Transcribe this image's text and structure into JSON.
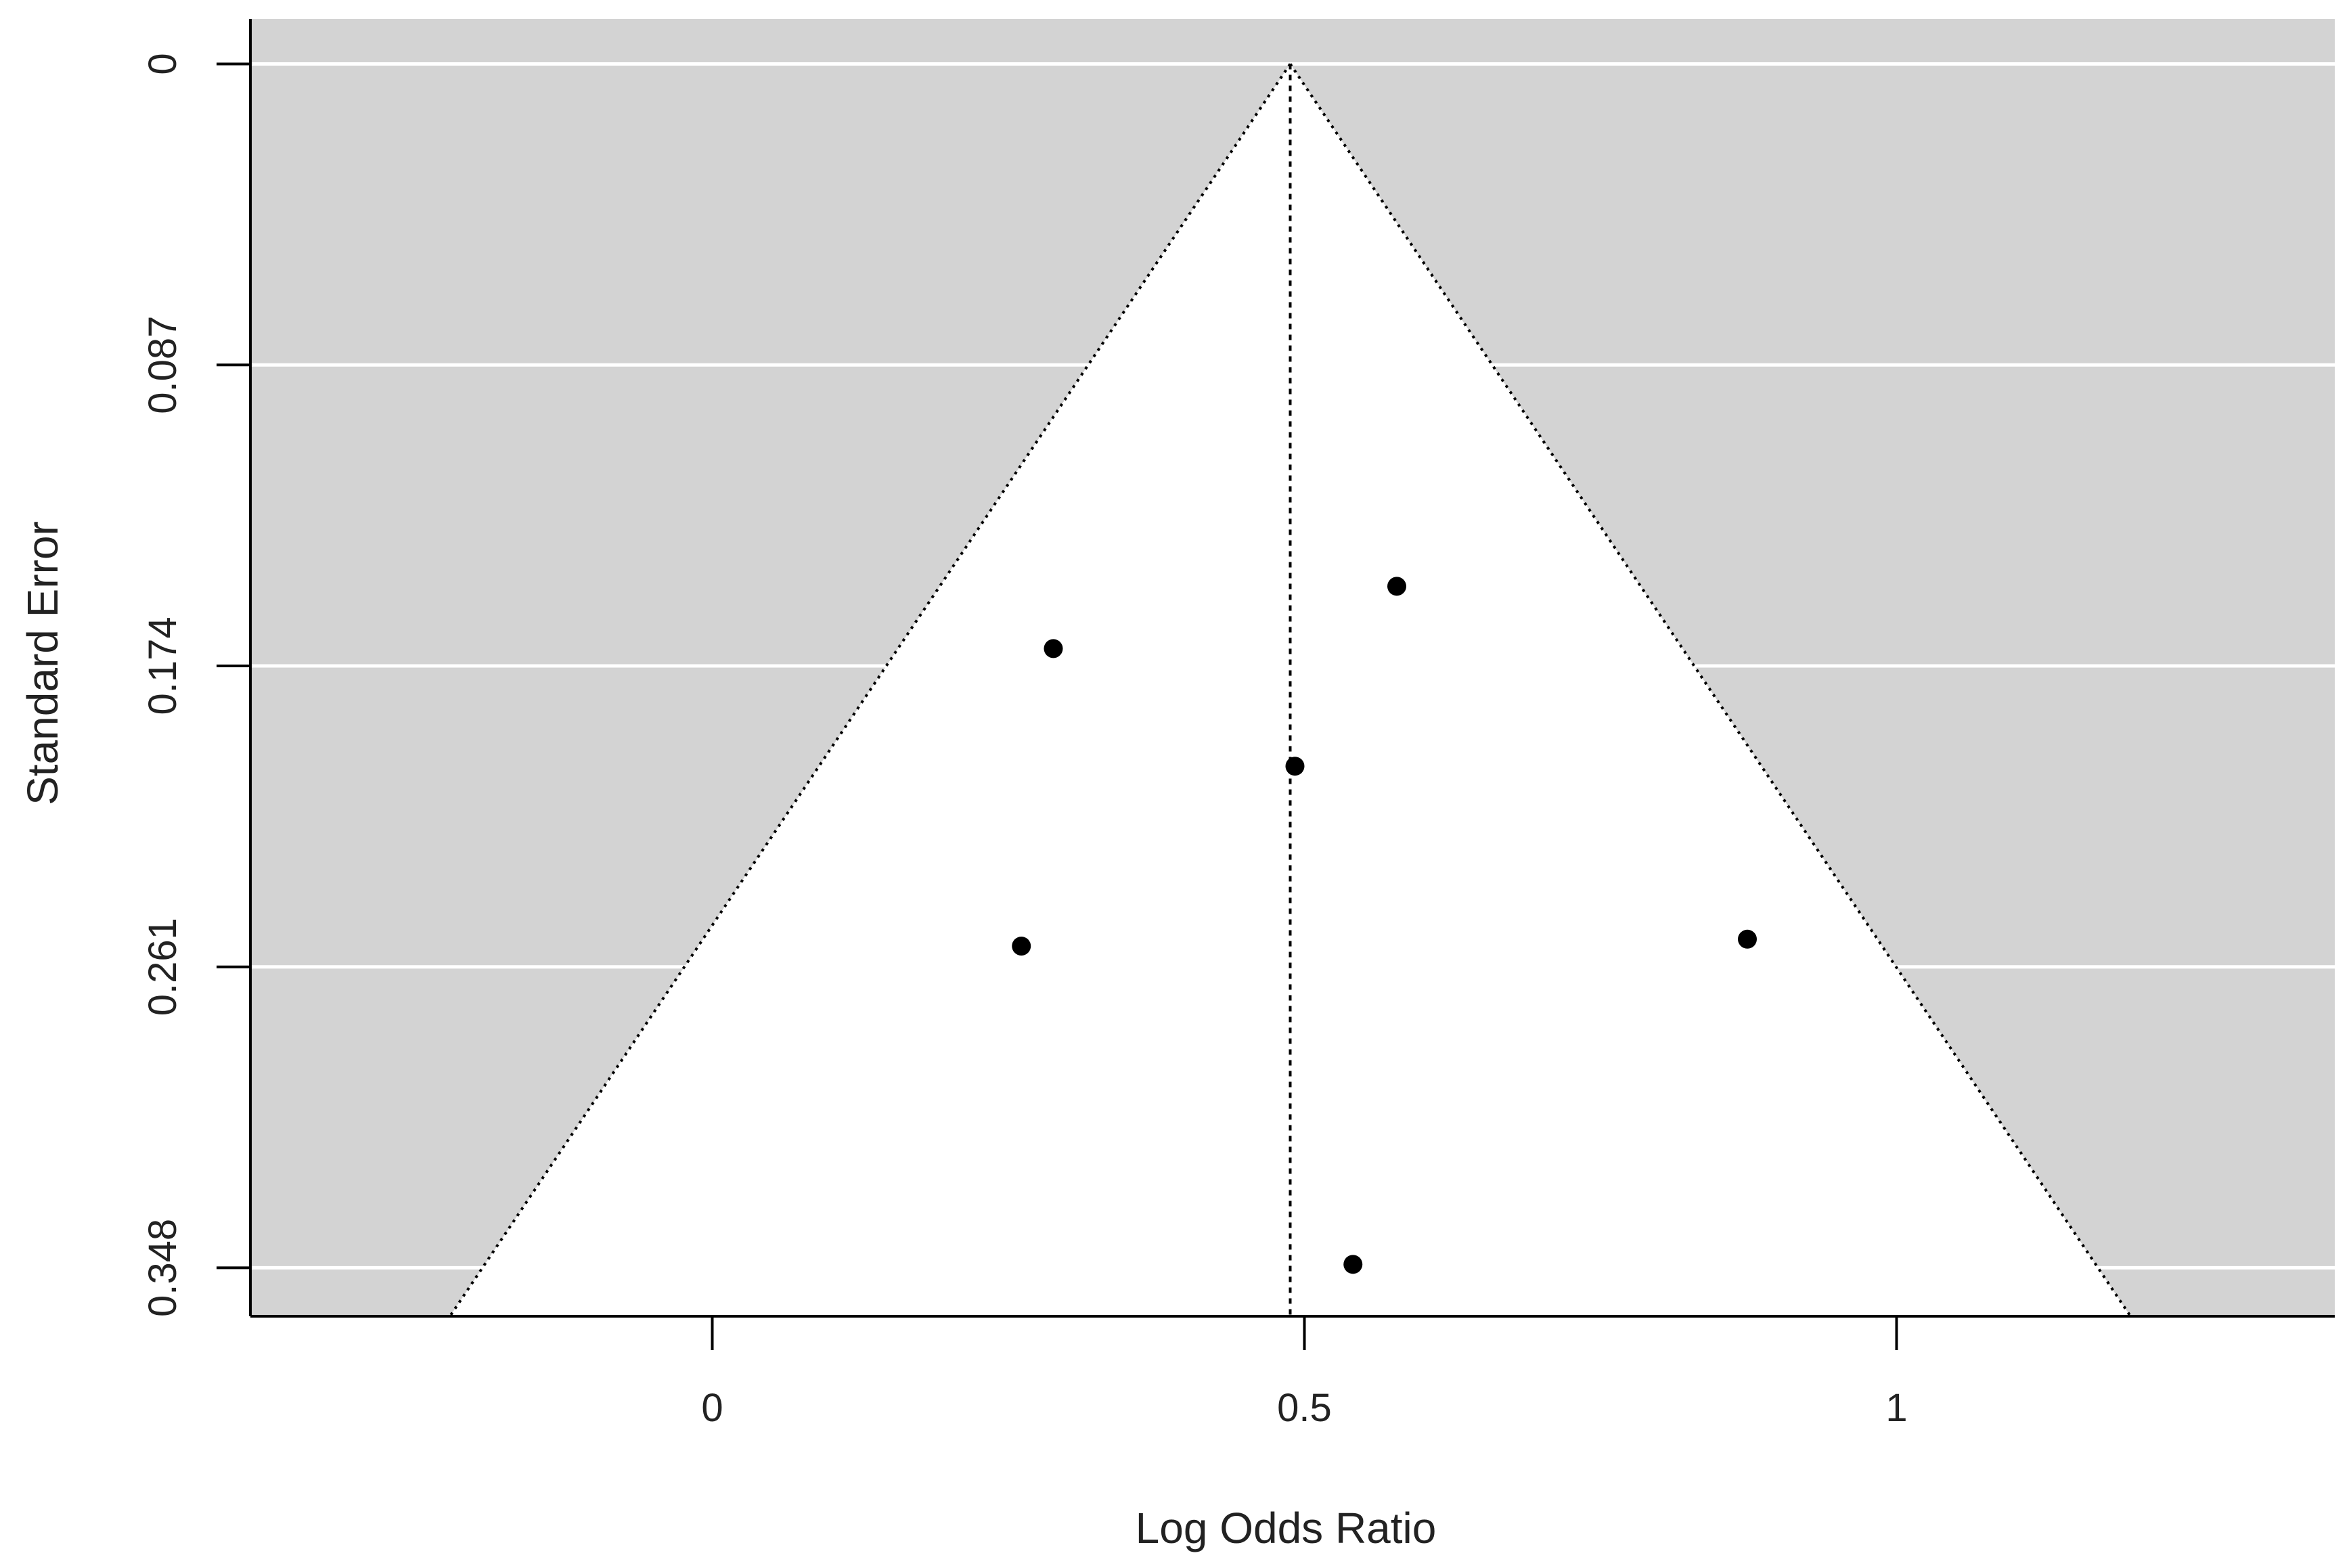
{
  "chart_data": {
    "type": "scatter",
    "subtype": "funnel plot",
    "title": "",
    "xlabel": "Log Odds Ratio",
    "ylabel": "Standard Error",
    "xlim": [
      -0.39,
      1.37
    ],
    "ylim": [
      0.362,
      -0.013
    ],
    "y_reversed": true,
    "x_ticks": [
      {
        "value": 0,
        "label": "0"
      },
      {
        "value": 0.5,
        "label": "0.5"
      },
      {
        "value": 1,
        "label": "1"
      }
    ],
    "y_ticks": [
      {
        "value": 0,
        "label": "0"
      },
      {
        "value": 0.087,
        "label": "0.087"
      },
      {
        "value": 0.174,
        "label": "0.174"
      },
      {
        "value": 0.261,
        "label": "0.261"
      },
      {
        "value": 0.348,
        "label": "0.348"
      }
    ],
    "grid": true,
    "summary_estimate": 0.488,
    "funnel_multiplier": 1.96,
    "points": [
      {
        "x": 0.578,
        "y": 0.151
      },
      {
        "x": 0.288,
        "y": 0.169
      },
      {
        "x": 0.492,
        "y": 0.203
      },
      {
        "x": 0.261,
        "y": 0.255
      },
      {
        "x": 0.874,
        "y": 0.253
      },
      {
        "x": 0.541,
        "y": 0.347
      }
    ],
    "colors": {
      "background": "#d3d3d3",
      "funnel_fill": "#ffffff",
      "grid": "#ffffff",
      "points": "#000000",
      "lines": "#000000",
      "text": "#222222"
    }
  }
}
